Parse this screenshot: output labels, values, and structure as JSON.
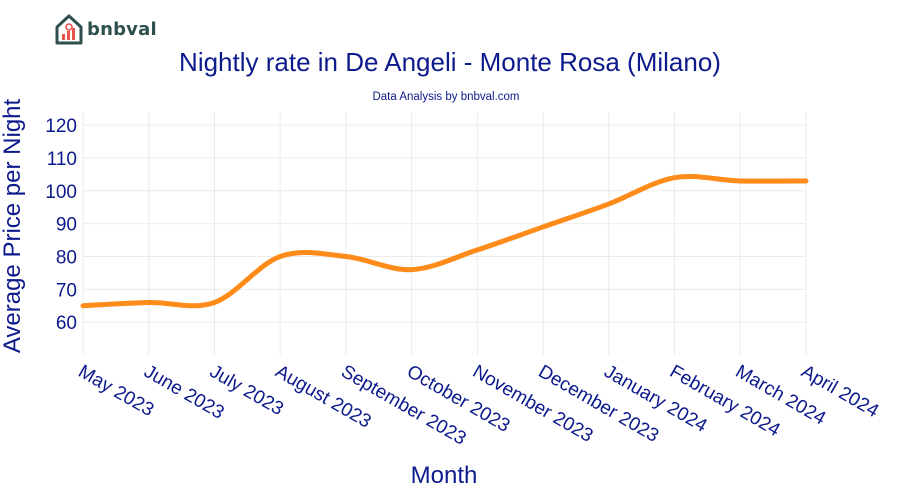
{
  "brand": {
    "name": "bnbval"
  },
  "colors": {
    "line": "#ff8c1a",
    "text": "#0d1a8c",
    "grid": "#ebebeb",
    "logo": "#2f4f4f",
    "logo_accent": "#e8534a"
  },
  "chart_data": {
    "type": "line",
    "title": "Nightly rate in De Angeli - Monte Rosa (Milano)",
    "subtitle": "Data Analysis by bnbval.com",
    "xlabel": "Month",
    "ylabel": "Average Price per Night",
    "categories": [
      "May 2023",
      "June 2023",
      "July 2023",
      "August 2023",
      "September 2023",
      "October 2023",
      "November 2023",
      "December 2023",
      "January 2024",
      "February 2024",
      "March 2024",
      "April 2024"
    ],
    "series": [
      {
        "name": "Average Price per Night",
        "values": [
          65,
          66,
          66,
          80,
          80,
          76,
          82,
          89,
          96,
          104,
          103,
          103
        ]
      }
    ],
    "yticks": [
      60,
      70,
      80,
      90,
      100,
      110,
      120
    ],
    "ylim": [
      50,
      124
    ],
    "grid": true
  }
}
